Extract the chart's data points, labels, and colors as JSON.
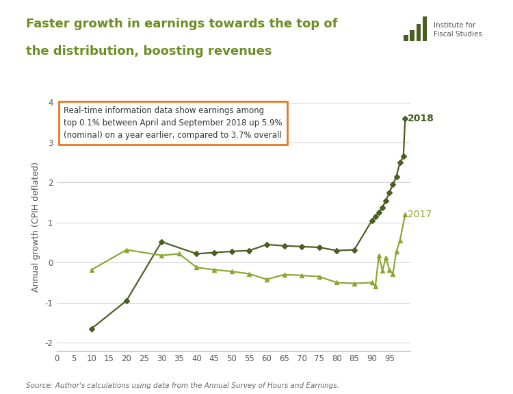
{
  "title_line1": "Faster growth in earnings towards the top of",
  "title_line2": "the distribution, boosting revenues",
  "title_color": "#6B8E23",
  "ylabel": "Annual growth (CPIH deflated)",
  "source": "Source: Author's calculations using data from the Annual Survey of Hours and Earnings.",
  "annotation_text": "Real-time information data show earnings among\ntop 0.1% between April and September 2018 up 5.9%\n(nominal) on a year earlier, compared to 3.7% overall",
  "bg_color": "#FFFFFF",
  "dark_green": "#4A5E23",
  "light_green": "#8BA832",
  "series_2018": {
    "x": [
      10,
      20,
      30,
      40,
      45,
      50,
      55,
      60,
      65,
      70,
      75,
      80,
      85,
      90,
      91,
      92,
      93,
      94,
      95,
      96,
      97,
      98,
      99,
      99.5
    ],
    "y": [
      -1.65,
      -0.95,
      0.52,
      0.22,
      0.25,
      0.28,
      0.3,
      0.45,
      0.42,
      0.4,
      0.38,
      0.3,
      0.32,
      1.05,
      1.15,
      1.25,
      1.38,
      1.55,
      1.75,
      1.95,
      2.15,
      2.5,
      2.65,
      3.6
    ]
  },
  "series_2017": {
    "x": [
      10,
      20,
      30,
      35,
      40,
      45,
      50,
      55,
      60,
      65,
      70,
      75,
      80,
      85,
      90,
      91,
      92,
      93,
      94,
      95,
      96,
      97,
      98,
      99.5
    ],
    "y": [
      -0.18,
      0.32,
      0.18,
      0.22,
      -0.12,
      -0.18,
      -0.22,
      -0.28,
      -0.42,
      -0.3,
      -0.32,
      -0.35,
      -0.5,
      -0.52,
      -0.5,
      -0.6,
      0.18,
      -0.2,
      0.12,
      -0.18,
      -0.28,
      0.28,
      0.55,
      1.2
    ]
  },
  "xlim": [
    4,
    101
  ],
  "ylim": [
    -2.2,
    4.0
  ],
  "xticks": [
    0,
    5,
    10,
    15,
    20,
    25,
    30,
    35,
    40,
    45,
    50,
    55,
    60,
    65,
    70,
    75,
    80,
    85,
    90,
    95
  ],
  "yticks": [
    -2,
    -1,
    0,
    1,
    2,
    3,
    4
  ]
}
